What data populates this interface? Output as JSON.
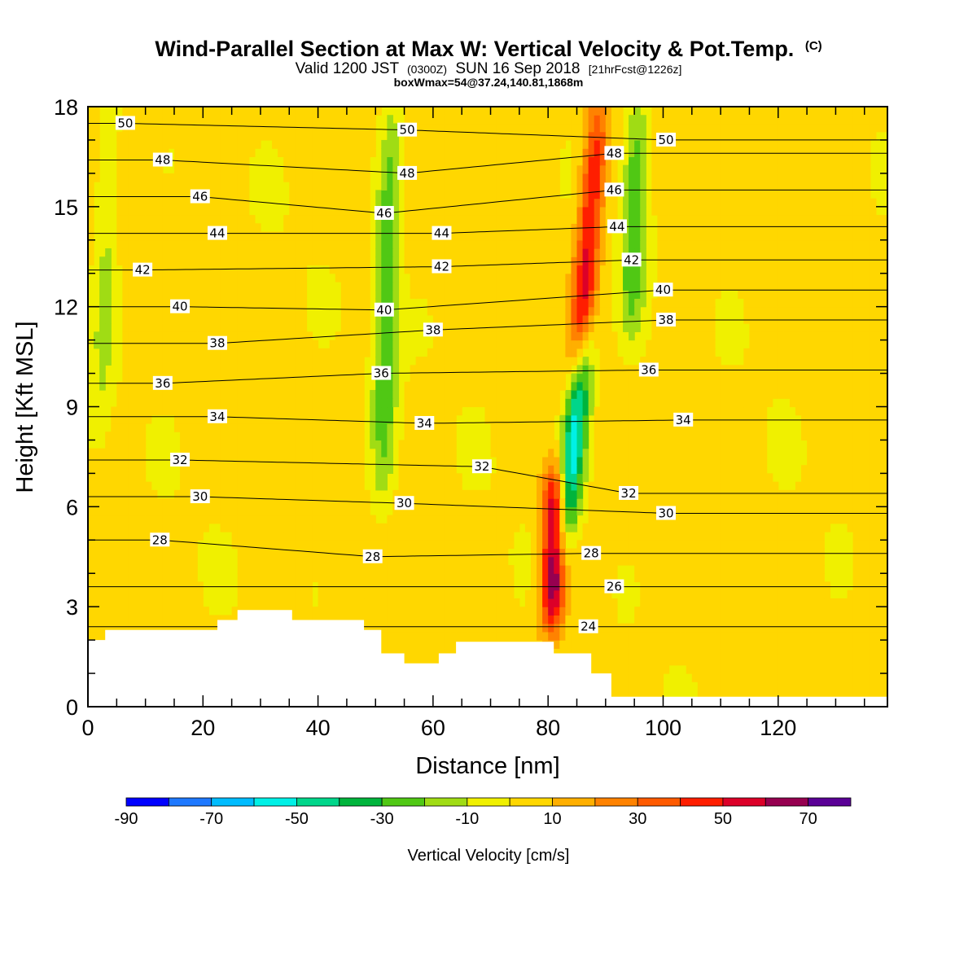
{
  "header": {
    "title": "Wind-Parallel Section at Max W: Vertical Velocity & Pot.Temp.",
    "copyright": "(C)",
    "valid_prefix": "Valid 1200 JST",
    "valid_zulu": "(0300Z)",
    "valid_date": "SUN 16 Sep 2018",
    "forecast": "[21hrFcst@1226z]",
    "boxinfo": "boxWmax=54@37.24,140.81,1868m"
  },
  "chart_data": {
    "type": "heatmap",
    "xlabel": "Distance [nm]",
    "ylabel": "Height [Kft MSL]",
    "xlim": [
      0,
      139
    ],
    "ylim": [
      0,
      18
    ],
    "x_ticks": [
      "0",
      "20",
      "40",
      "60",
      "80",
      "100",
      "120"
    ],
    "y_ticks": [
      "0",
      "3",
      "6",
      "9",
      "12",
      "15",
      "18"
    ],
    "colorbar": {
      "title": "Vertical Velocity [cm/s]",
      "bounds": [
        -90,
        80
      ],
      "step": 10,
      "tick_labels": [
        "-90",
        "-70",
        "-50",
        "-30",
        "-10",
        "10",
        "30",
        "50",
        "70"
      ],
      "colors": [
        "#0000ff",
        "#1e78ff",
        "#00bcff",
        "#00f0e6",
        "#00d68a",
        "#00b43c",
        "#50c814",
        "#a0dc14",
        "#f0f000",
        "#ffd700",
        "#ffaf00",
        "#ff8200",
        "#ff5a00",
        "#ff1e00",
        "#dc0028",
        "#960050",
        "#5a0096"
      ]
    },
    "vertical_velocity_features": [
      {
        "type": "updraft",
        "x": 81,
        "ytop": 7,
        "ybot": 2.5,
        "peak": 70
      },
      {
        "type": "updraft",
        "x": 87,
        "ytop": 18,
        "ybot": 10,
        "peak": 50
      },
      {
        "type": "downdraft",
        "x": 84.5,
        "ytop": 11,
        "ybot": 5,
        "peak": -60
      },
      {
        "type": "downdraft",
        "x": 52,
        "ytop": 18,
        "ybot": 6.5,
        "peak": -30
      },
      {
        "type": "downdraft",
        "x": 95,
        "ytop": 18,
        "ybot": 11.5,
        "peak": -30
      },
      {
        "type": "downdraft",
        "x": 3,
        "ytop": 18,
        "ybot": 8.5,
        "peak": -15
      }
    ],
    "terrain": {
      "x": [
        0,
        3,
        3,
        22.5,
        22.5,
        26,
        26,
        35.5,
        35.5,
        48,
        48,
        51,
        51,
        55,
        55,
        61,
        61,
        64,
        64,
        81,
        81,
        87.5,
        87.5,
        91,
        91,
        139
      ],
      "height": [
        2,
        2,
        2.3,
        2.3,
        2.6,
        2.6,
        2.9,
        2.9,
        2.6,
        2.6,
        2.3,
        2.3,
        1.6,
        1.6,
        1.3,
        1.3,
        1.6,
        1.6,
        1.95,
        1.95,
        1.6,
        1.6,
        1.0,
        1.0,
        0.3,
        0.3
      ]
    },
    "theta_contours": [
      {
        "theta": "24",
        "label_x": 87,
        "label_y": 2.4
      },
      {
        "theta": "26",
        "label_x": 91.5,
        "label_y": 3.6
      },
      {
        "theta": "28",
        "label_x": 12.5,
        "label_y": 5.0
      },
      {
        "theta": "28",
        "label_x": 49.5,
        "label_y": 4.5
      },
      {
        "theta": "28",
        "label_x": 87.5,
        "label_y": 4.6
      },
      {
        "theta": "30",
        "label_x": 19.5,
        "label_y": 6.3
      },
      {
        "theta": "30",
        "label_x": 55,
        "label_y": 6.1
      },
      {
        "theta": "30",
        "label_x": 100.5,
        "label_y": 5.8
      },
      {
        "theta": "32",
        "label_x": 16,
        "label_y": 7.4
      },
      {
        "theta": "32",
        "label_x": 68.5,
        "label_y": 7.2
      },
      {
        "theta": "32",
        "label_x": 94,
        "label_y": 6.4
      },
      {
        "theta": "34",
        "label_x": 22.5,
        "label_y": 8.7
      },
      {
        "theta": "34",
        "label_x": 58.5,
        "label_y": 8.5
      },
      {
        "theta": "34",
        "label_x": 103.5,
        "label_y": 8.6
      },
      {
        "theta": "36",
        "label_x": 13,
        "label_y": 9.7
      },
      {
        "theta": "36",
        "label_x": 51,
        "label_y": 10.0
      },
      {
        "theta": "36",
        "label_x": 97.5,
        "label_y": 10.1
      },
      {
        "theta": "38",
        "label_x": 22.5,
        "label_y": 10.9
      },
      {
        "theta": "38",
        "label_x": 60,
        "label_y": 11.3
      },
      {
        "theta": "38",
        "label_x": 100.5,
        "label_y": 11.6
      },
      {
        "theta": "40",
        "label_x": 16,
        "label_y": 12.0
      },
      {
        "theta": "40",
        "label_x": 51.5,
        "label_y": 11.9
      },
      {
        "theta": "40",
        "label_x": 100,
        "label_y": 12.5
      },
      {
        "theta": "42",
        "label_x": 9.5,
        "label_y": 13.1
      },
      {
        "theta": "42",
        "label_x": 61.5,
        "label_y": 13.2
      },
      {
        "theta": "42",
        "label_x": 94.5,
        "label_y": 13.4
      },
      {
        "theta": "44",
        "label_x": 22.5,
        "label_y": 14.2
      },
      {
        "theta": "44",
        "label_x": 61.5,
        "label_y": 14.2
      },
      {
        "theta": "44",
        "label_x": 92,
        "label_y": 14.4
      },
      {
        "theta": "46",
        "label_x": 19.5,
        "label_y": 15.3
      },
      {
        "theta": "46",
        "label_x": 51.5,
        "label_y": 14.8
      },
      {
        "theta": "46",
        "label_x": 91.5,
        "label_y": 15.5
      },
      {
        "theta": "48",
        "label_x": 13,
        "label_y": 16.4
      },
      {
        "theta": "48",
        "label_x": 55.5,
        "label_y": 16.0
      },
      {
        "theta": "48",
        "label_x": 91.5,
        "label_y": 16.6
      },
      {
        "theta": "50",
        "label_x": 6.5,
        "label_y": 17.5
      },
      {
        "theta": "50",
        "label_x": 55.5,
        "label_y": 17.3
      },
      {
        "theta": "50",
        "label_x": 100.5,
        "label_y": 17.0
      }
    ]
  }
}
